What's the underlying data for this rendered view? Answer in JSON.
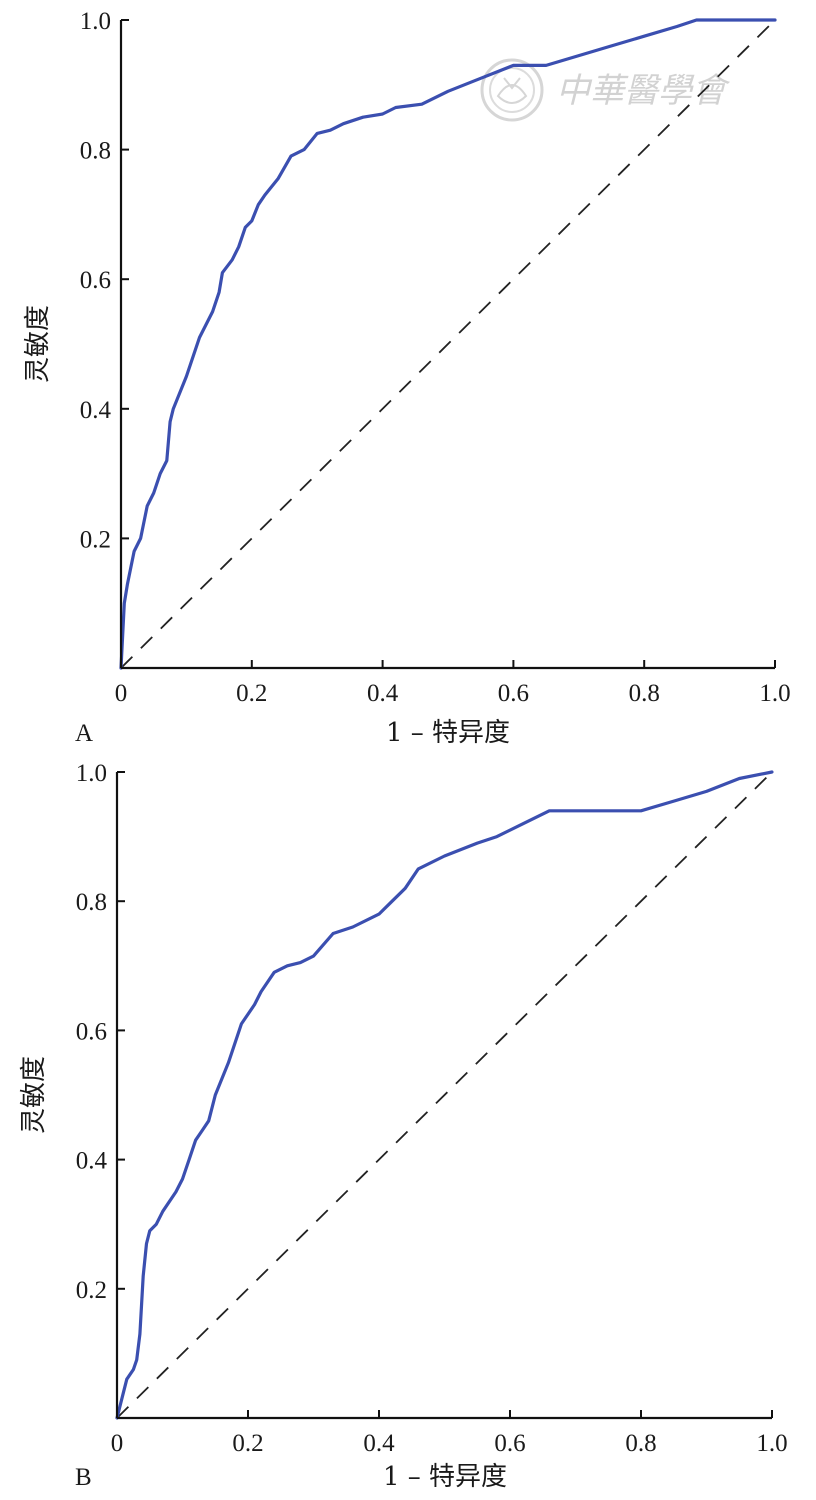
{
  "watermark": {
    "text": "中華醫學會"
  },
  "colors": {
    "roc": "#3b4fb0",
    "reference": "#222222",
    "axis": "#111111",
    "watermark": "#d2d2d2"
  },
  "chart_data": [
    {
      "type": "line",
      "panel_label": "A",
      "title": "",
      "xlabel": "1 – 特异度",
      "ylabel": "灵敏度",
      "xlim": [
        0,
        1
      ],
      "ylim": [
        0,
        1
      ],
      "x_ticks": [
        0,
        0.2,
        0.4,
        0.6,
        0.8,
        1.0
      ],
      "x_tick_labels": [
        "0",
        "0.2",
        "0.4",
        "0.6",
        "0.8",
        "1.0"
      ],
      "y_ticks": [
        0.2,
        0.4,
        0.6,
        0.8,
        1.0
      ],
      "y_tick_labels": [
        "0.2",
        "0.4",
        "0.6",
        "0.8",
        "1.0"
      ],
      "grid": false,
      "series": [
        {
          "style": "solid",
          "points": [
            [
              0.0,
              0.0
            ],
            [
              0.005,
              0.1
            ],
            [
              0.01,
              0.13
            ],
            [
              0.02,
              0.18
            ],
            [
              0.03,
              0.2
            ],
            [
              0.04,
              0.25
            ],
            [
              0.05,
              0.27
            ],
            [
              0.06,
              0.3
            ],
            [
              0.07,
              0.32
            ],
            [
              0.075,
              0.38
            ],
            [
              0.08,
              0.4
            ],
            [
              0.1,
              0.45
            ],
            [
              0.12,
              0.51
            ],
            [
              0.14,
              0.55
            ],
            [
              0.15,
              0.58
            ],
            [
              0.155,
              0.61
            ],
            [
              0.17,
              0.63
            ],
            [
              0.18,
              0.65
            ],
            [
              0.19,
              0.68
            ],
            [
              0.2,
              0.69
            ],
            [
              0.21,
              0.715
            ],
            [
              0.22,
              0.73
            ],
            [
              0.24,
              0.755
            ],
            [
              0.26,
              0.79
            ],
            [
              0.28,
              0.8
            ],
            [
              0.3,
              0.825
            ],
            [
              0.32,
              0.83
            ],
            [
              0.34,
              0.84
            ],
            [
              0.37,
              0.85
            ],
            [
              0.4,
              0.855
            ],
            [
              0.42,
              0.865
            ],
            [
              0.46,
              0.87
            ],
            [
              0.5,
              0.89
            ],
            [
              0.55,
              0.91
            ],
            [
              0.6,
              0.93
            ],
            [
              0.65,
              0.93
            ],
            [
              0.7,
              0.945
            ],
            [
              0.75,
              0.96
            ],
            [
              0.8,
              0.975
            ],
            [
              0.85,
              0.99
            ],
            [
              0.88,
              1.0
            ],
            [
              1.0,
              1.0
            ]
          ]
        },
        {
          "style": "dashed",
          "points": [
            [
              0,
              0
            ],
            [
              1,
              1
            ]
          ]
        }
      ]
    },
    {
      "type": "line",
      "panel_label": "B",
      "title": "",
      "xlabel": "1 – 特异度",
      "ylabel": "灵敏度",
      "xlim": [
        0,
        1
      ],
      "ylim": [
        0,
        1
      ],
      "x_ticks": [
        0,
        0.2,
        0.4,
        0.6,
        0.8,
        1.0
      ],
      "x_tick_labels": [
        "0",
        "0.2",
        "0.4",
        "0.6",
        "0.8",
        "1.0"
      ],
      "y_ticks": [
        0.2,
        0.4,
        0.6,
        0.8,
        1.0
      ],
      "y_tick_labels": [
        "0.2",
        "0.4",
        "0.6",
        "0.8",
        "1.0"
      ],
      "grid": false,
      "series": [
        {
          "style": "solid",
          "points": [
            [
              0.0,
              0.0
            ],
            [
              0.01,
              0.04
            ],
            [
              0.015,
              0.06
            ],
            [
              0.025,
              0.075
            ],
            [
              0.03,
              0.09
            ],
            [
              0.035,
              0.13
            ],
            [
              0.04,
              0.22
            ],
            [
              0.045,
              0.27
            ],
            [
              0.05,
              0.29
            ],
            [
              0.06,
              0.3
            ],
            [
              0.07,
              0.32
            ],
            [
              0.09,
              0.35
            ],
            [
              0.1,
              0.37
            ],
            [
              0.11,
              0.4
            ],
            [
              0.12,
              0.43
            ],
            [
              0.13,
              0.445
            ],
            [
              0.14,
              0.46
            ],
            [
              0.15,
              0.5
            ],
            [
              0.17,
              0.55
            ],
            [
              0.19,
              0.61
            ],
            [
              0.21,
              0.64
            ],
            [
              0.22,
              0.66
            ],
            [
              0.24,
              0.69
            ],
            [
              0.26,
              0.7
            ],
            [
              0.28,
              0.705
            ],
            [
              0.3,
              0.715
            ],
            [
              0.33,
              0.75
            ],
            [
              0.36,
              0.76
            ],
            [
              0.4,
              0.78
            ],
            [
              0.42,
              0.8
            ],
            [
              0.44,
              0.82
            ],
            [
              0.46,
              0.85
            ],
            [
              0.5,
              0.87
            ],
            [
              0.55,
              0.89
            ],
            [
              0.58,
              0.9
            ],
            [
              0.62,
              0.92
            ],
            [
              0.66,
              0.94
            ],
            [
              0.7,
              0.94
            ],
            [
              0.8,
              0.94
            ],
            [
              0.85,
              0.955
            ],
            [
              0.9,
              0.97
            ],
            [
              0.95,
              0.99
            ],
            [
              1.0,
              1.0
            ]
          ]
        },
        {
          "style": "dashed",
          "points": [
            [
              0,
              0
            ],
            [
              1,
              1
            ]
          ]
        }
      ]
    }
  ]
}
